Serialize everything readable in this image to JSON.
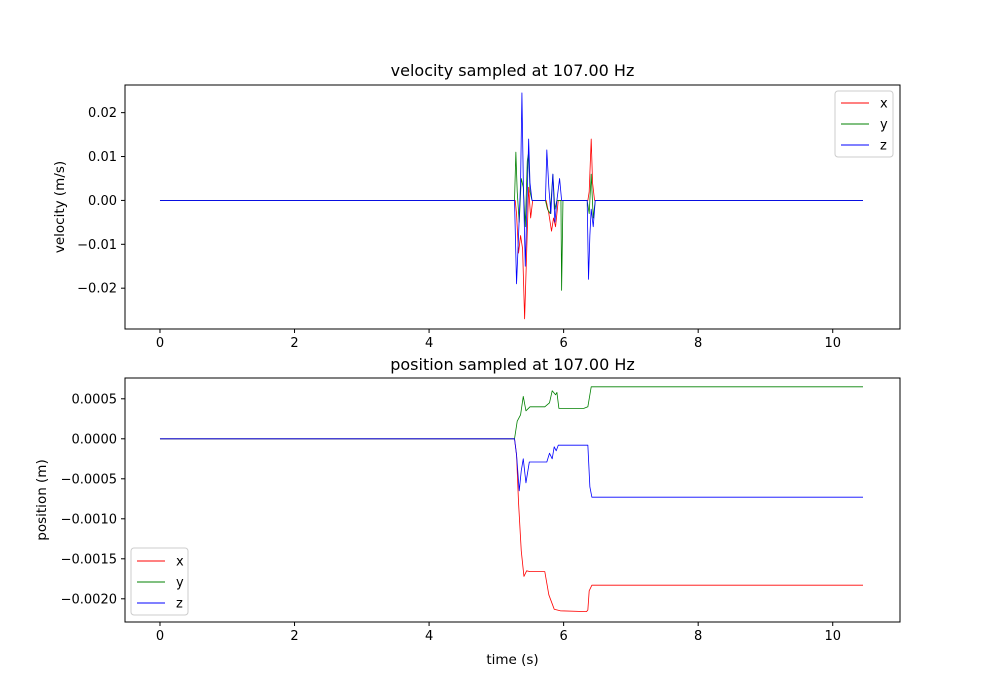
{
  "colors": {
    "x": "#ff0000",
    "y": "#008000",
    "z": "#0000ff"
  },
  "chart_data": [
    {
      "type": "line",
      "title": "velocity sampled at 107.00 Hz",
      "xlabel": "",
      "ylabel": "velocity (m/s)",
      "xlim": [
        -0.52,
        11.0
      ],
      "ylim": [
        -0.0293,
        0.0263
      ],
      "xticks": [
        0,
        2,
        4,
        6,
        8,
        10
      ],
      "xtick_labels": [
        "0",
        "2",
        "4",
        "6",
        "8",
        "10"
      ],
      "yticks": [
        -0.02,
        -0.01,
        0.0,
        0.01,
        0.02
      ],
      "ytick_labels": [
        "−0.02",
        "−0.01",
        "0.00",
        "0.01",
        "0.02"
      ],
      "legend": {
        "position": "top-right",
        "entries": [
          "x",
          "y",
          "z"
        ]
      },
      "grid": false,
      "series": [
        {
          "name": "x",
          "color": "#ff0000",
          "points": [
            [
              0,
              0
            ],
            [
              5.28,
              0
            ],
            [
              5.3,
              -0.003
            ],
            [
              5.33,
              -0.012
            ],
            [
              5.36,
              -0.008
            ],
            [
              5.39,
              -0.011
            ],
            [
              5.42,
              -0.027
            ],
            [
              5.45,
              -0.012
            ],
            [
              5.48,
              0.003
            ],
            [
              5.51,
              -0.004
            ],
            [
              5.54,
              0
            ],
            [
              5.74,
              0
            ],
            [
              5.78,
              -0.003
            ],
            [
              5.82,
              -0.007
            ],
            [
              5.85,
              -0.004
            ],
            [
              5.88,
              -0.006
            ],
            [
              5.92,
              0
            ],
            [
              6.36,
              0
            ],
            [
              6.38,
              0.002
            ],
            [
              6.41,
              0.014
            ],
            [
              6.43,
              0.004
            ],
            [
              6.46,
              0
            ],
            [
              10.45,
              0
            ]
          ]
        },
        {
          "name": "y",
          "color": "#008000",
          "points": [
            [
              0,
              0
            ],
            [
              5.27,
              0
            ],
            [
              5.29,
              0.011
            ],
            [
              5.31,
              0.002
            ],
            [
              5.34,
              -0.005
            ],
            [
              5.37,
              0.005
            ],
            [
              5.4,
              0.003
            ],
            [
              5.43,
              -0.006
            ],
            [
              5.46,
              0.009
            ],
            [
              5.48,
              0.011
            ],
            [
              5.5,
              0.002
            ],
            [
              5.53,
              0
            ],
            [
              5.73,
              0
            ],
            [
              5.76,
              -0.002
            ],
            [
              5.8,
              -0.003
            ],
            [
              5.84,
              0.006
            ],
            [
              5.87,
              -0.002
            ],
            [
              5.9,
              0
            ],
            [
              5.96,
              0
            ],
            [
              5.97,
              -0.0205
            ],
            [
              5.99,
              0
            ],
            [
              6.35,
              0
            ],
            [
              6.38,
              -0.003
            ],
            [
              6.41,
              0.006
            ],
            [
              6.44,
              -0.004
            ],
            [
              6.47,
              0
            ],
            [
              10.45,
              0
            ]
          ]
        },
        {
          "name": "z",
          "color": "#0000ff",
          "points": [
            [
              0,
              0
            ],
            [
              5.27,
              0
            ],
            [
              5.3,
              -0.019
            ],
            [
              5.33,
              -0.008
            ],
            [
              5.36,
              0.004
            ],
            [
              5.38,
              0.0245
            ],
            [
              5.4,
              0.005
            ],
            [
              5.43,
              -0.015
            ],
            [
              5.46,
              0.002
            ],
            [
              5.48,
              0.014
            ],
            [
              5.5,
              0.004
            ],
            [
              5.53,
              0
            ],
            [
              5.73,
              0
            ],
            [
              5.75,
              0.0115
            ],
            [
              5.78,
              0.003
            ],
            [
              5.81,
              -0.003
            ],
            [
              5.84,
              0.006
            ],
            [
              5.87,
              -0.005
            ],
            [
              5.9,
              0
            ],
            [
              5.94,
              0.005
            ],
            [
              5.97,
              0
            ],
            [
              6.35,
              0
            ],
            [
              6.37,
              -0.018
            ],
            [
              6.39,
              -0.008
            ],
            [
              6.41,
              -0.002
            ],
            [
              6.44,
              -0.006
            ],
            [
              6.47,
              0
            ],
            [
              10.45,
              0
            ]
          ]
        }
      ]
    },
    {
      "type": "line",
      "title": "position sampled at 107.00 Hz",
      "xlabel": "time (s)",
      "ylabel": "position (m)",
      "xlim": [
        -0.52,
        11.0
      ],
      "ylim": [
        -0.00229,
        0.00076
      ],
      "xticks": [
        0,
        2,
        4,
        6,
        8,
        10
      ],
      "xtick_labels": [
        "0",
        "2",
        "4",
        "6",
        "8",
        "10"
      ],
      "yticks": [
        -0.002,
        -0.0015,
        -0.001,
        -0.0005,
        0.0,
        0.0005
      ],
      "ytick_labels": [
        "−0.0020",
        "−0.0015",
        "−0.0010",
        "−0.0005",
        "0.0000",
        "0.0005"
      ],
      "legend": {
        "position": "bottom-left",
        "entries": [
          "x",
          "y",
          "z"
        ]
      },
      "grid": false,
      "series": [
        {
          "name": "x",
          "color": "#ff0000",
          "points": [
            [
              0,
              0
            ],
            [
              5.27,
              0
            ],
            [
              5.3,
              -0.0002
            ],
            [
              5.33,
              -0.0008
            ],
            [
              5.37,
              -0.0014
            ],
            [
              5.41,
              -0.00172
            ],
            [
              5.45,
              -0.00165
            ],
            [
              5.5,
              -0.00166
            ],
            [
              5.72,
              -0.00166
            ],
            [
              5.78,
              -0.00195
            ],
            [
              5.86,
              -0.00213
            ],
            [
              5.95,
              -0.00215
            ],
            [
              6.34,
              -0.00216
            ],
            [
              6.36,
              -0.00214
            ],
            [
              6.38,
              -0.0019
            ],
            [
              6.42,
              -0.00183
            ],
            [
              10.45,
              -0.00183
            ]
          ]
        },
        {
          "name": "y",
          "color": "#008000",
          "points": [
            [
              0,
              0
            ],
            [
              5.27,
              0
            ],
            [
              5.31,
              0.00022
            ],
            [
              5.36,
              0.0003
            ],
            [
              5.4,
              0.00053
            ],
            [
              5.44,
              0.00035
            ],
            [
              5.5,
              0.0004
            ],
            [
              5.72,
              0.0004
            ],
            [
              5.79,
              0.00045
            ],
            [
              5.83,
              0.0006
            ],
            [
              5.88,
              0.00055
            ],
            [
              5.9,
              0.00058
            ],
            [
              5.93,
              0.00038
            ],
            [
              6.3,
              0.00038
            ],
            [
              6.36,
              0.0004
            ],
            [
              6.41,
              0.00065
            ],
            [
              10.45,
              0.00065
            ]
          ]
        },
        {
          "name": "z",
          "color": "#0000ff",
          "points": [
            [
              0,
              0
            ],
            [
              5.27,
              0
            ],
            [
              5.3,
              -0.0002
            ],
            [
              5.34,
              -0.00065
            ],
            [
              5.37,
              -0.0004
            ],
            [
              5.4,
              -0.00025
            ],
            [
              5.44,
              -0.00055
            ],
            [
              5.49,
              -0.00029
            ],
            [
              5.75,
              -0.00029
            ],
            [
              5.79,
              -0.00018
            ],
            [
              5.83,
              -0.00025
            ],
            [
              5.86,
              -0.0001
            ],
            [
              5.89,
              -0.00015
            ],
            [
              5.92,
              -8e-05
            ],
            [
              6.36,
              -8e-05
            ],
            [
              6.39,
              -0.0006
            ],
            [
              6.42,
              -0.00073
            ],
            [
              10.45,
              -0.00073
            ]
          ]
        }
      ]
    }
  ]
}
